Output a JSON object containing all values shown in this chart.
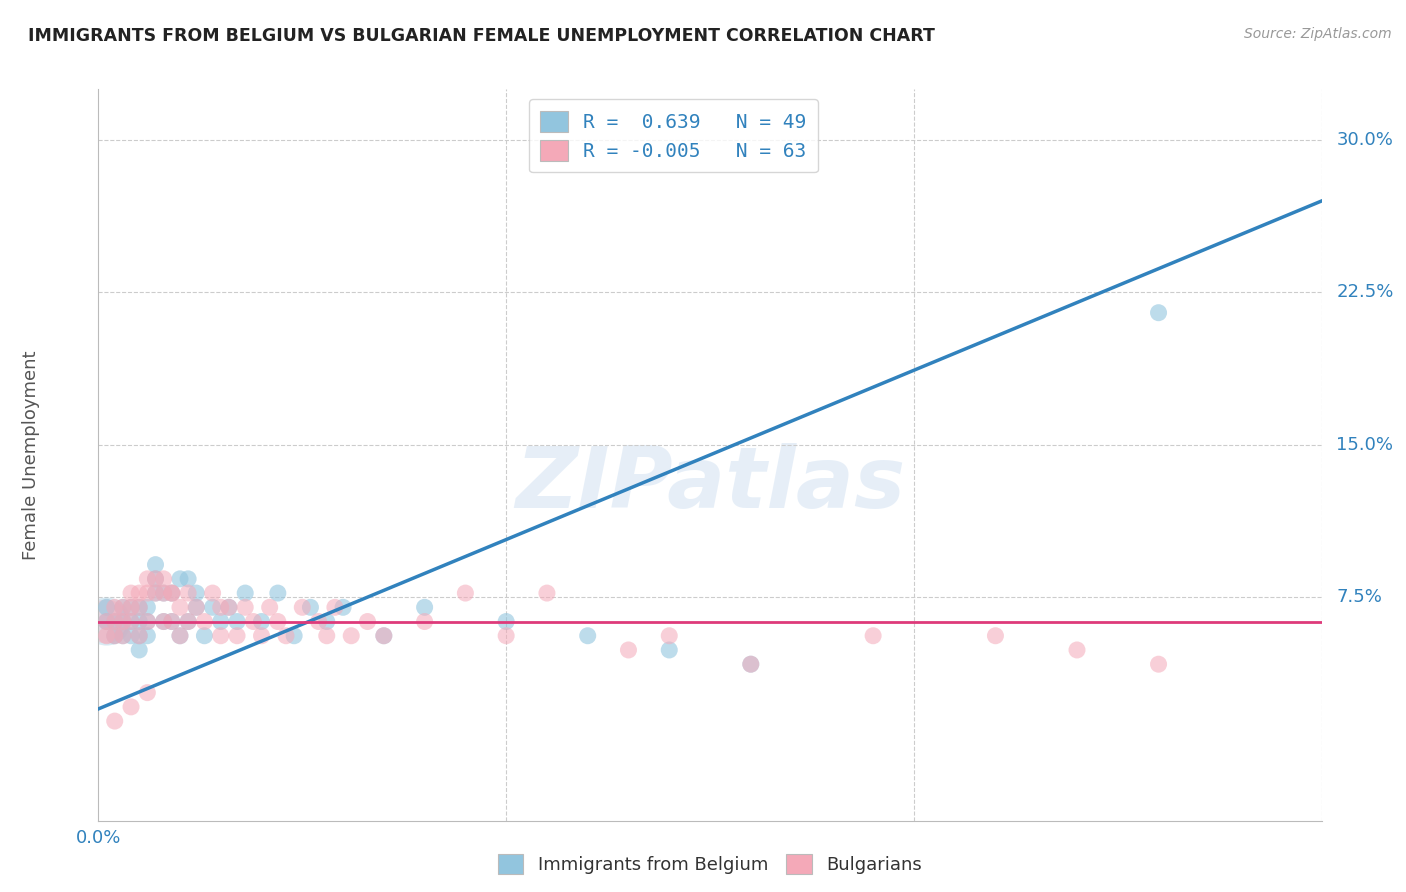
{
  "title": "IMMIGRANTS FROM BELGIUM VS BULGARIAN FEMALE UNEMPLOYMENT CORRELATION CHART",
  "source": "Source: ZipAtlas.com",
  "ylabel": "Female Unemployment",
  "ytick_values": [
    0.075,
    0.15,
    0.225,
    0.3
  ],
  "ytick_labels": [
    "7.5%",
    "15.0%",
    "22.5%",
    "30.0%"
  ],
  "xlim": [
    0.0,
    0.15
  ],
  "ylim": [
    -0.035,
    0.325
  ],
  "legend_r1": "R =  0.639   N = 49",
  "legend_r2": "R = -0.005   N = 63",
  "blue_color": "#92c5de",
  "pink_color": "#f4a9b8",
  "line_blue": "#3182bd",
  "line_pink": "#de3a7a",
  "watermark_text": "ZIPatlas",
  "blue_line_x": [
    0.0,
    0.15
  ],
  "blue_line_y": [
    0.02,
    0.27
  ],
  "pink_line_x": [
    0.0,
    0.15
  ],
  "pink_line_y": [
    0.063,
    0.063
  ],
  "blue_scatter_x": [
    0.001,
    0.001,
    0.002,
    0.002,
    0.003,
    0.003,
    0.003,
    0.004,
    0.004,
    0.004,
    0.005,
    0.005,
    0.005,
    0.005,
    0.006,
    0.006,
    0.006,
    0.007,
    0.007,
    0.007,
    0.008,
    0.008,
    0.009,
    0.009,
    0.01,
    0.01,
    0.011,
    0.011,
    0.012,
    0.012,
    0.013,
    0.014,
    0.015,
    0.016,
    0.017,
    0.018,
    0.02,
    0.022,
    0.024,
    0.026,
    0.028,
    0.03,
    0.035,
    0.04,
    0.05,
    0.06,
    0.07,
    0.08,
    0.13
  ],
  "blue_scatter_y": [
    0.063,
    0.07,
    0.063,
    0.056,
    0.07,
    0.063,
    0.056,
    0.07,
    0.063,
    0.056,
    0.063,
    0.07,
    0.056,
    0.049,
    0.063,
    0.07,
    0.056,
    0.077,
    0.084,
    0.091,
    0.063,
    0.077,
    0.063,
    0.077,
    0.084,
    0.056,
    0.063,
    0.084,
    0.07,
    0.077,
    0.056,
    0.07,
    0.063,
    0.07,
    0.063,
    0.077,
    0.063,
    0.077,
    0.056,
    0.07,
    0.063,
    0.07,
    0.056,
    0.07,
    0.063,
    0.056,
    0.049,
    0.042,
    0.215
  ],
  "blue_scatter_big_x": [
    0.001
  ],
  "blue_scatter_big_y": [
    0.063
  ],
  "blue_scatter_big_s": 1200,
  "pink_scatter_x": [
    0.001,
    0.001,
    0.002,
    0.002,
    0.002,
    0.003,
    0.003,
    0.003,
    0.004,
    0.004,
    0.004,
    0.005,
    0.005,
    0.005,
    0.006,
    0.006,
    0.006,
    0.007,
    0.007,
    0.008,
    0.008,
    0.008,
    0.009,
    0.009,
    0.01,
    0.01,
    0.011,
    0.011,
    0.012,
    0.013,
    0.014,
    0.015,
    0.016,
    0.017,
    0.018,
    0.019,
    0.02,
    0.021,
    0.022,
    0.023,
    0.025,
    0.027,
    0.029,
    0.031,
    0.035,
    0.04,
    0.05,
    0.065,
    0.08,
    0.095,
    0.11,
    0.12,
    0.13,
    0.07,
    0.055,
    0.045,
    0.033,
    0.028,
    0.015,
    0.009,
    0.006,
    0.004,
    0.002
  ],
  "pink_scatter_y": [
    0.063,
    0.056,
    0.07,
    0.063,
    0.056,
    0.07,
    0.063,
    0.056,
    0.07,
    0.077,
    0.063,
    0.056,
    0.07,
    0.077,
    0.084,
    0.077,
    0.063,
    0.084,
    0.077,
    0.084,
    0.077,
    0.063,
    0.077,
    0.063,
    0.07,
    0.056,
    0.077,
    0.063,
    0.07,
    0.063,
    0.077,
    0.056,
    0.07,
    0.056,
    0.07,
    0.063,
    0.056,
    0.07,
    0.063,
    0.056,
    0.07,
    0.063,
    0.07,
    0.056,
    0.056,
    0.063,
    0.056,
    0.049,
    0.042,
    0.056,
    0.056,
    0.049,
    0.042,
    0.056,
    0.077,
    0.077,
    0.063,
    0.056,
    0.07,
    0.077,
    0.028,
    0.021,
    0.014
  ],
  "pink_scatter_big_x": [
    0.001
  ],
  "pink_scatter_big_y": [
    0.063
  ],
  "pink_scatter_big_s": 1000
}
